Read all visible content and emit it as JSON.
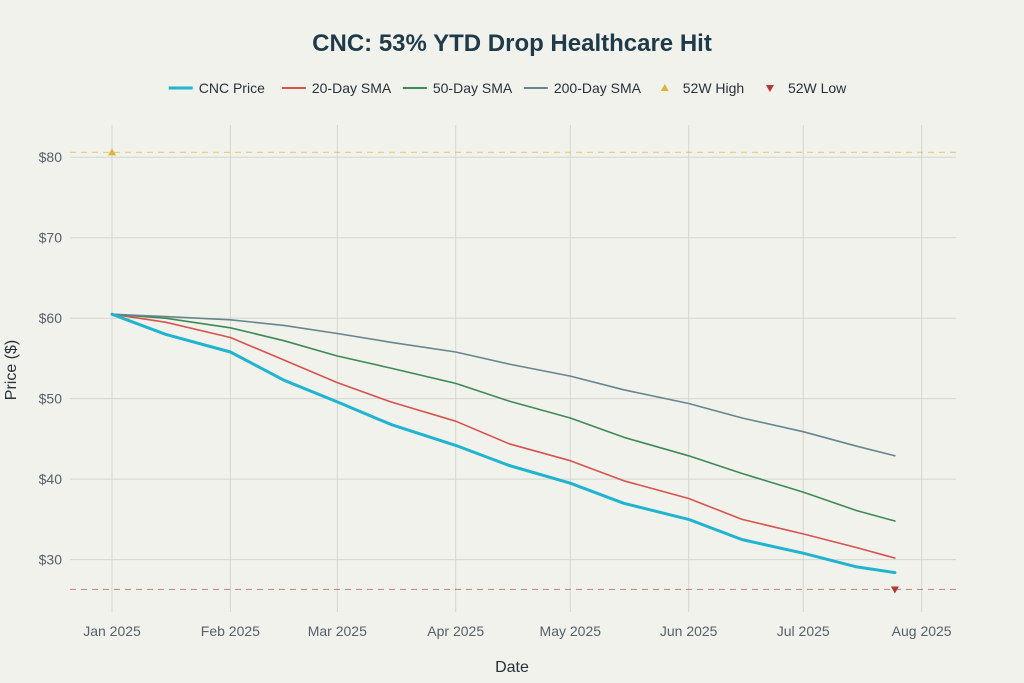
{
  "chart_data": {
    "type": "line",
    "title": "CNC: 53% YTD Drop Healthcare Hit",
    "xlabel": "Date",
    "ylabel": "Price ($)",
    "x": [
      "2025-01-01",
      "2025-01-15",
      "2025-02-01",
      "2025-02-15",
      "2025-03-01",
      "2025-03-15",
      "2025-04-01",
      "2025-04-15",
      "2025-05-01",
      "2025-05-15",
      "2025-06-01",
      "2025-06-15",
      "2025-07-01",
      "2025-07-15",
      "2025-07-25"
    ],
    "x_ticks": [
      "Jan 2025",
      "Feb 2025",
      "Mar 2025",
      "Apr 2025",
      "May 2025",
      "Jun 2025",
      "Jul 2025",
      "Aug 2025"
    ],
    "x_tick_dates": [
      "2025-01-01",
      "2025-02-01",
      "2025-03-01",
      "2025-04-01",
      "2025-05-01",
      "2025-06-01",
      "2025-07-01",
      "2025-08-01"
    ],
    "x_range": [
      "2024-12-21",
      "2025-08-10"
    ],
    "y_ticks": [
      30,
      40,
      50,
      60,
      70,
      80
    ],
    "y_tick_labels": [
      "$30",
      "$40",
      "$50",
      "$60",
      "$70",
      "$80"
    ],
    "ylim": [
      23.5,
      84
    ],
    "grid": true,
    "legend_position": "top",
    "series": [
      {
        "name": "CNC Price",
        "color": "#1fb4d0",
        "width": 3,
        "values": [
          60.5,
          58.0,
          55.8,
          52.3,
          49.6,
          46.8,
          44.2,
          41.7,
          39.5,
          37.0,
          35.0,
          32.5,
          30.8,
          29.1,
          28.4
        ]
      },
      {
        "name": "20-Day SMA",
        "color": "#d9524e",
        "width": 1.6,
        "values": [
          60.5,
          59.5,
          57.6,
          54.8,
          52.0,
          49.6,
          47.2,
          44.4,
          42.3,
          39.8,
          37.6,
          35.0,
          33.2,
          31.5,
          30.2
        ]
      },
      {
        "name": "50-Day SMA",
        "color": "#3c8b55",
        "width": 1.6,
        "values": [
          60.5,
          60.0,
          58.8,
          57.2,
          55.3,
          53.8,
          51.9,
          49.7,
          47.6,
          45.2,
          42.9,
          40.7,
          38.4,
          36.1,
          34.8
        ]
      },
      {
        "name": "200-Day SMA",
        "color": "#66868f",
        "width": 1.6,
        "values": [
          60.5,
          60.2,
          59.8,
          59.1,
          58.1,
          57.0,
          55.8,
          54.3,
          52.8,
          51.1,
          49.4,
          47.6,
          45.9,
          44.1,
          42.9
        ]
      }
    ],
    "markers": [
      {
        "name": "52W High",
        "color": "#e0b23c",
        "symbol": "triangle-up",
        "x": "2025-01-01",
        "y": 80.6
      },
      {
        "name": "52W Low",
        "color": "#b03a32",
        "symbol": "triangle-down",
        "x": "2025-07-25",
        "y": 26.3
      }
    ]
  }
}
